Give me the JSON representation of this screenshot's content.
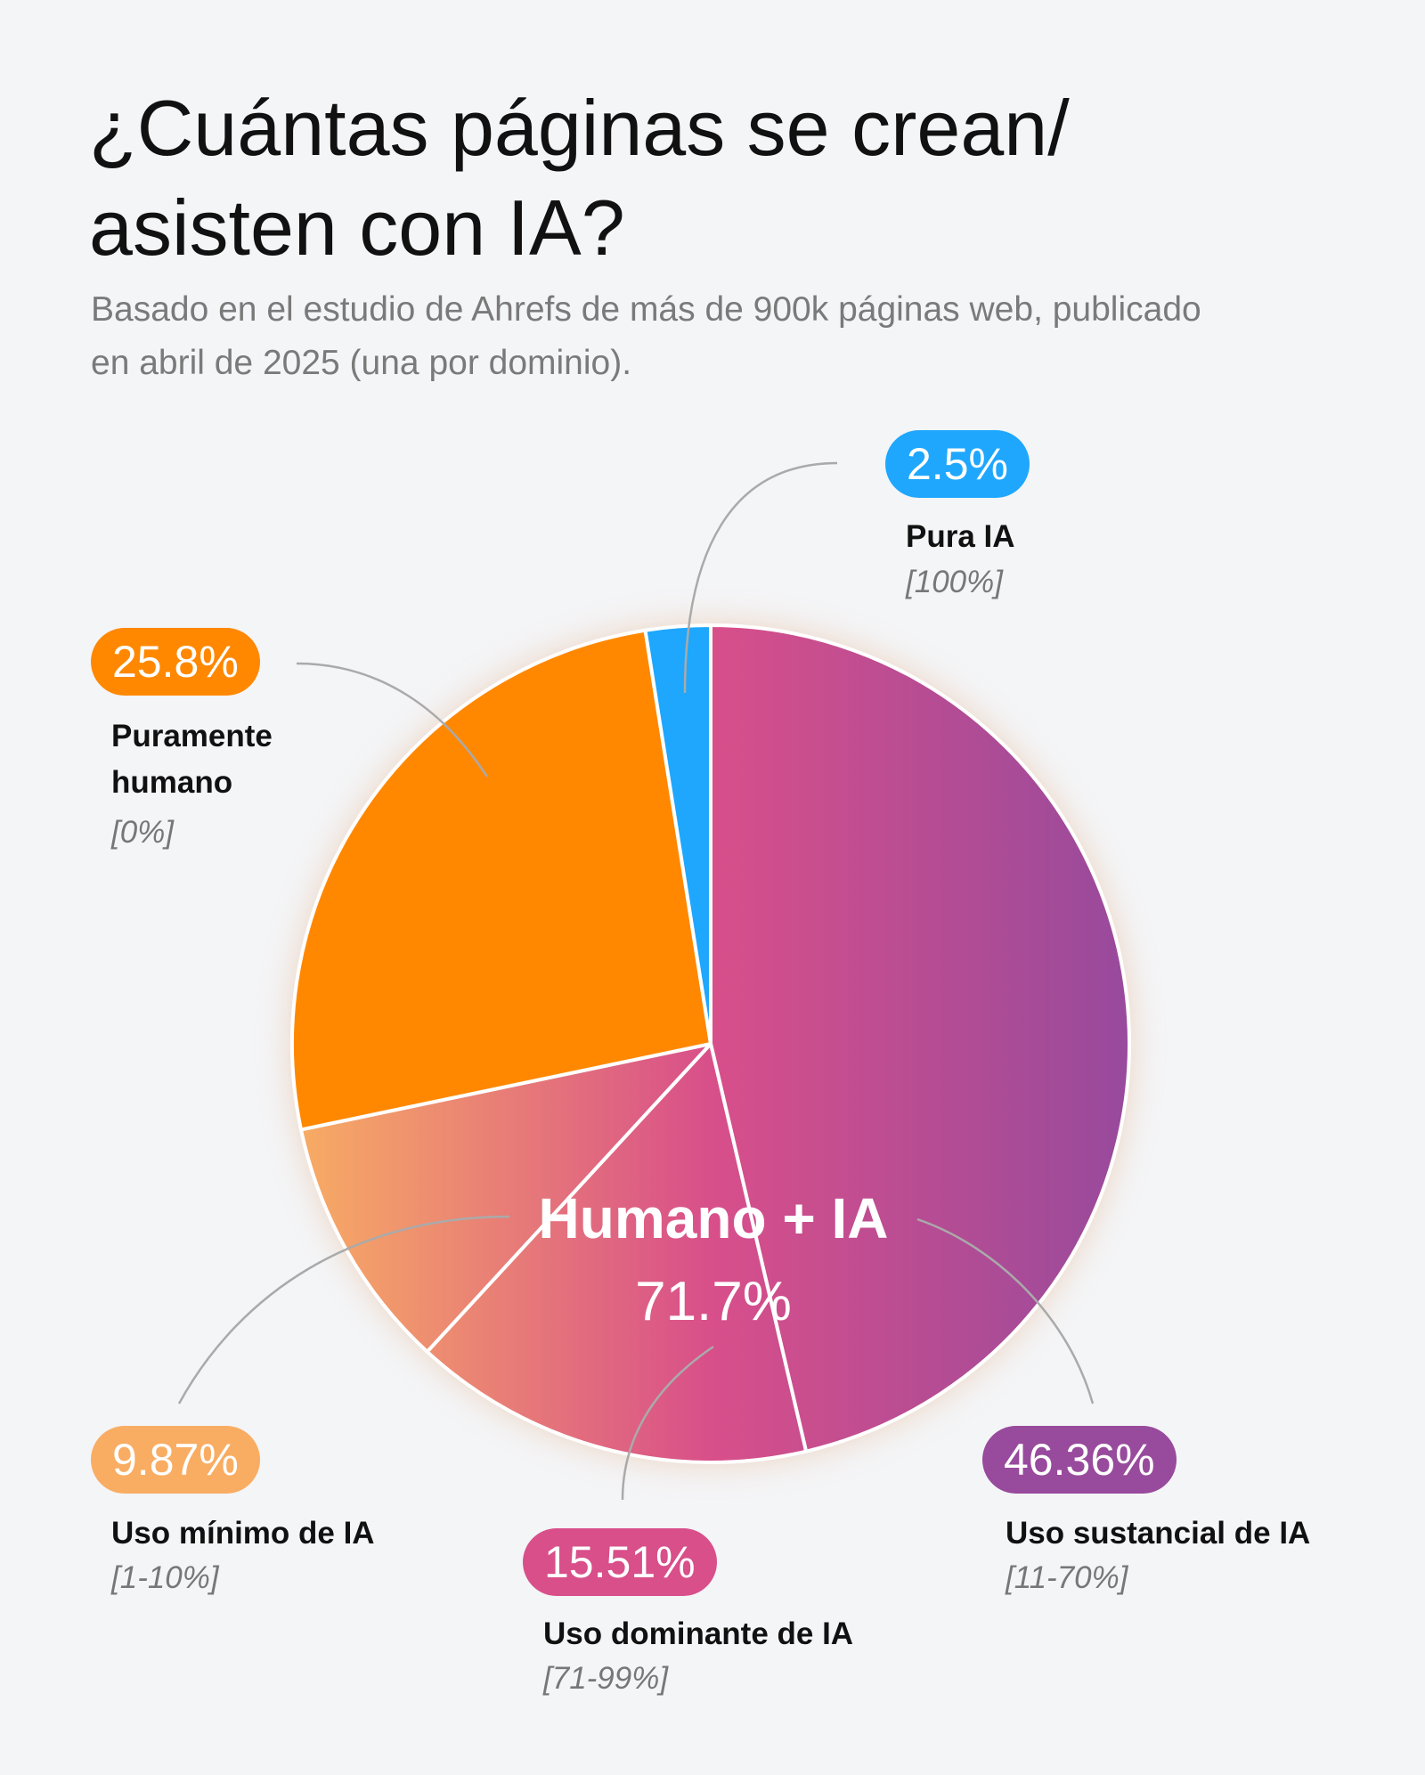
{
  "chart_data": {
    "type": "pie",
    "title": "¿Cuántas páginas se crean/ asisten con IA?",
    "subtitle": "Basado en el estudio de Ahrefs de más de 900k páginas web, publicado en abril de 2025 (una por dominio).",
    "center_title": "Humano + IA",
    "center_label": "71.7%",
    "slices": [
      {
        "name": "Uso sustancial de IA",
        "range": "[11-70%]",
        "value": 46.36,
        "value_label": "46.36%",
        "color": "#984a9c",
        "gradient": true
      },
      {
        "name": "Uso dominante de IA",
        "range": "[71-99%]",
        "value": 15.51,
        "value_label": "15.51%",
        "color": "#d84f8a",
        "gradient": true
      },
      {
        "name": "Uso mínimo de IA",
        "range": "[1-10%]",
        "value": 9.87,
        "value_label": "9.87%",
        "color": "#f8ad63",
        "gradient": true
      },
      {
        "name": "Puramente humano",
        "range": "[0%]",
        "value": 25.8,
        "value_label": "25.8%",
        "color": "#ff8800",
        "gradient": false
      },
      {
        "name": "Pura IA",
        "range": "[100%]",
        "value": 2.5,
        "value_label": "2.5%",
        "color": "#1ea7fd",
        "gradient": false
      }
    ]
  }
}
